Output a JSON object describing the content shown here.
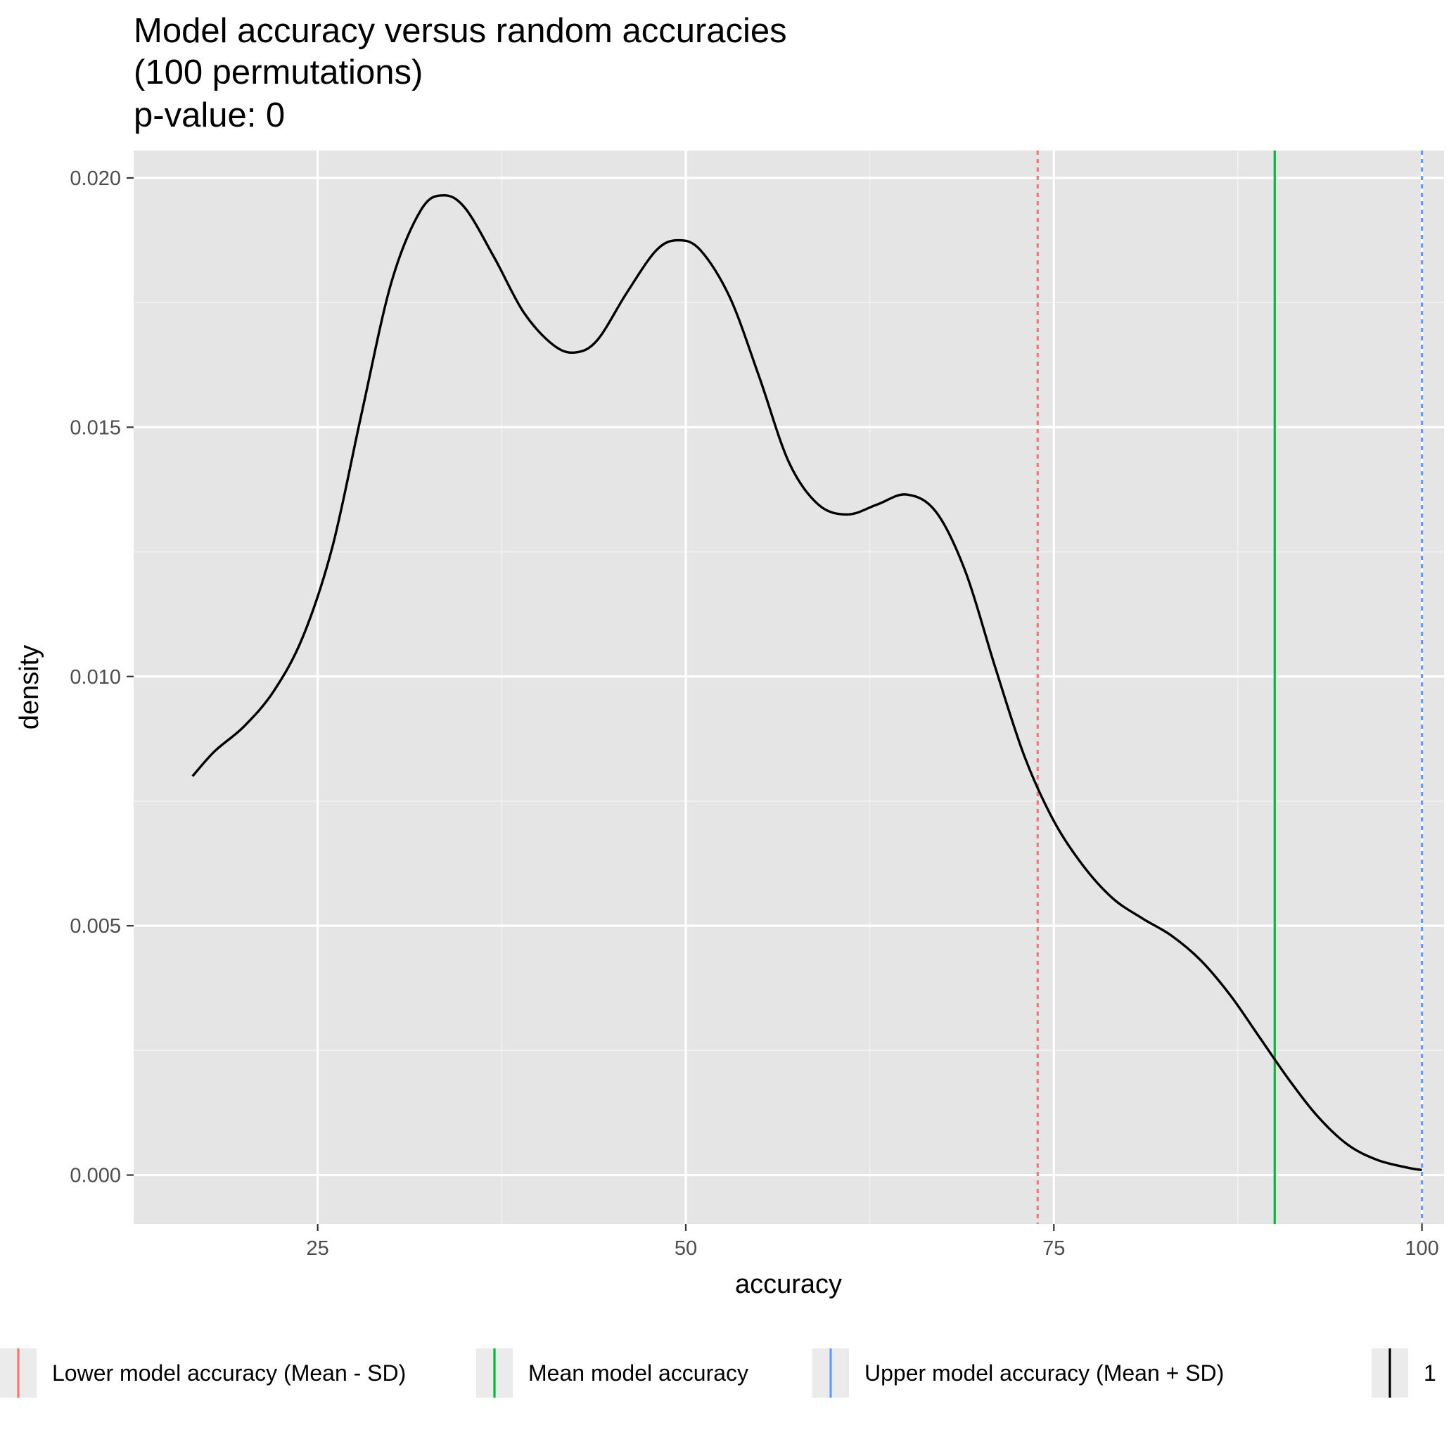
{
  "chart_data": {
    "type": "line",
    "title_lines": [
      "Model accuracy versus random accuracies",
      "(100 permutations)",
      "p-value: 0"
    ],
    "xlabel": "accuracy",
    "ylabel": "density",
    "xlim": [
      12.5,
      101.5
    ],
    "ylim": [
      -0.00098,
      0.02055
    ],
    "x_ticks": [
      25,
      50,
      75,
      100
    ],
    "y_ticks": [
      0.0,
      0.005,
      0.01,
      0.015,
      0.02
    ],
    "x_tick_labels": [
      "25",
      "50",
      "75",
      "100"
    ],
    "y_tick_labels": [
      "0.000",
      "0.005",
      "0.010",
      "0.015",
      "0.020"
    ],
    "grid": true,
    "legend_position": "bottom",
    "density_curve": {
      "color": "#000000",
      "x": [
        16.5,
        18,
        20,
        22,
        24,
        26,
        28,
        30,
        32,
        33.5,
        35,
        37,
        39,
        41,
        42.5,
        44,
        46,
        48,
        49.5,
        51,
        53,
        55,
        57,
        59,
        61,
        63,
        65,
        67,
        69,
        71,
        73,
        75,
        77,
        79,
        81,
        83,
        85,
        87,
        89,
        91,
        93,
        95,
        97,
        99,
        100
      ],
      "y": [
        0.008,
        0.0085,
        0.009,
        0.0097,
        0.0108,
        0.0126,
        0.0153,
        0.0179,
        0.01935,
        0.01965,
        0.0194,
        0.0184,
        0.0173,
        0.01665,
        0.0165,
        0.01675,
        0.0177,
        0.01855,
        0.01875,
        0.01855,
        0.0176,
        0.016,
        0.0143,
        0.01345,
        0.01325,
        0.01345,
        0.01365,
        0.0133,
        0.0121,
        0.0102,
        0.0084,
        0.0071,
        0.0062,
        0.00555,
        0.00515,
        0.0048,
        0.0043,
        0.0036,
        0.00275,
        0.0019,
        0.00115,
        0.0006,
        0.0003,
        0.00015,
        0.0001
      ]
    },
    "reference_lines": [
      {
        "label": "Lower model accuracy (Mean - SD)",
        "x": 73.9,
        "color": "#F8766D",
        "dash": "dotted"
      },
      {
        "label": "Mean model accuracy",
        "x": 90.0,
        "color": "#00BA38",
        "dash": "solid"
      },
      {
        "label": "Upper model accuracy (Mean + SD)",
        "x": 100.0,
        "color": "#619CFF",
        "dash": "dotted"
      }
    ],
    "legend": [
      {
        "label": "Lower model accuracy (Mean - SD)",
        "color": "#F8766D"
      },
      {
        "label": "Mean model accuracy",
        "color": "#00BA38"
      },
      {
        "label": "Upper model accuracy (Mean + SD)",
        "color": "#619CFF"
      },
      {
        "label": "1",
        "color": "#000000"
      }
    ]
  }
}
